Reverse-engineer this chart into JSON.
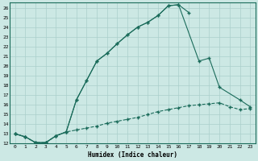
{
  "xlabel": "Humidex (Indice chaleur)",
  "bg_color": "#cce8e4",
  "line_color": "#1a6b5a",
  "grid_color": "#aacfcb",
  "xlim": [
    -0.5,
    23.5
  ],
  "ylim": [
    12,
    26.5
  ],
  "xticks": [
    0,
    1,
    2,
    3,
    4,
    5,
    6,
    7,
    8,
    9,
    10,
    11,
    12,
    13,
    14,
    15,
    16,
    17,
    18,
    19,
    20,
    21,
    22,
    23
  ],
  "yticks": [
    12,
    13,
    14,
    15,
    16,
    17,
    18,
    19,
    20,
    21,
    22,
    23,
    24,
    25,
    26
  ],
  "line1_x": [
    0,
    1,
    2,
    3,
    4,
    5,
    6,
    7,
    8,
    9,
    10,
    11,
    12,
    13,
    14,
    15,
    16,
    17
  ],
  "line1_y": [
    13,
    12.7,
    12.1,
    12.1,
    12.8,
    13.2,
    16.5,
    18.5,
    20.5,
    21.3,
    22.3,
    23.2,
    24.0,
    24.5,
    25.2,
    26.2,
    26.3,
    25.5
  ],
  "line2_x": [
    0,
    1,
    2,
    3,
    4,
    5,
    6,
    7,
    8,
    9,
    10,
    11,
    12,
    13,
    14,
    15,
    16,
    18,
    19,
    20,
    22,
    23
  ],
  "line2_y": [
    13,
    12.7,
    12.1,
    12.1,
    12.8,
    13.2,
    16.5,
    18.5,
    20.5,
    21.3,
    22.3,
    23.2,
    24.0,
    24.5,
    25.2,
    26.2,
    26.3,
    20.5,
    20.8,
    17.8,
    16.5,
    15.8
  ],
  "line3_x": [
    0,
    1,
    2,
    3,
    4,
    5,
    6,
    7,
    8,
    9,
    10,
    11,
    12,
    13,
    14,
    15,
    16,
    17,
    18,
    19,
    20,
    21,
    22,
    23
  ],
  "line3_y": [
    13,
    12.7,
    12.1,
    12.1,
    12.8,
    13.2,
    13.4,
    13.6,
    13.8,
    14.1,
    14.3,
    14.5,
    14.7,
    15.0,
    15.3,
    15.5,
    15.7,
    15.9,
    16.0,
    16.1,
    16.2,
    15.8,
    15.5,
    15.6
  ]
}
